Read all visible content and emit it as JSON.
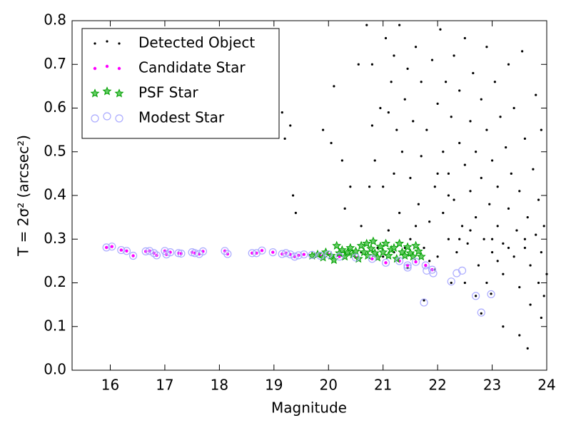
{
  "chart_data": {
    "type": "scatter",
    "xlabel": "Magnitude",
    "ylabel": "T = 2σ² (arcsec²)",
    "xlim": [
      15.3,
      24
    ],
    "ylim": [
      0,
      0.8
    ],
    "xticks": [
      16,
      17,
      18,
      19,
      20,
      21,
      22,
      23,
      24
    ],
    "yticks": [
      {
        "value": 0,
        "label": "0.0"
      },
      0.1,
      0.2,
      0.3,
      0.4,
      0.5,
      0.6,
      0.7,
      0.8
    ],
    "legend": "upper left",
    "series": [
      {
        "name": "Detected Object",
        "color": "#000000",
        "marker": "dot",
        "x": [
          19.15,
          19.2,
          19.3,
          19.35,
          19.4,
          19.9,
          20.05,
          20.1,
          20.25,
          20.3,
          20.4,
          20.55,
          20.6,
          20.7,
          20.75,
          20.8,
          20.8,
          20.85,
          20.95,
          21.0,
          21.05,
          21.1,
          21.1,
          21.15,
          21.2,
          21.2,
          21.25,
          21.3,
          21.3,
          21.35,
          21.4,
          21.45,
          21.5,
          21.5,
          21.55,
          21.6,
          21.65,
          21.7,
          21.7,
          21.75,
          21.8,
          21.85,
          21.9,
          21.95,
          22.0,
          22.0,
          22.05,
          22.1,
          22.1,
          22.15,
          22.2,
          22.2,
          22.25,
          22.3,
          22.3,
          22.35,
          22.4,
          22.4,
          22.45,
          22.5,
          22.5,
          22.55,
          22.6,
          22.6,
          22.65,
          22.7,
          22.7,
          22.75,
          22.8,
          22.8,
          22.85,
          22.9,
          22.9,
          22.95,
          23.0,
          23.0,
          23.05,
          23.1,
          23.1,
          23.15,
          23.2,
          23.2,
          23.25,
          23.3,
          23.3,
          23.35,
          23.4,
          23.4,
          23.45,
          23.5,
          23.5,
          23.55,
          23.6,
          23.6,
          23.65,
          23.7,
          23.7,
          23.75,
          23.8,
          23.8,
          23.85,
          23.85,
          23.9,
          23.9,
          23.95,
          23.95,
          23.5,
          23.65,
          23.2,
          23.9,
          24.0,
          22.5,
          22.9,
          21.85,
          21.95,
          21.75,
          22.8,
          22.98,
          22.7,
          22.25,
          21.45,
          21.0,
          20.6,
          20.2,
          22.2,
          22.6,
          23.0,
          23.3,
          23.6,
          23.1,
          22.4,
          21.6,
          22.0,
          21.4,
          21.2,
          20.9
        ],
        "values": [
          0.59,
          0.53,
          0.56,
          0.4,
          0.36,
          0.55,
          0.52,
          0.65,
          0.48,
          0.37,
          0.42,
          0.7,
          0.33,
          0.79,
          0.42,
          0.56,
          0.7,
          0.48,
          0.6,
          0.42,
          0.76,
          0.32,
          0.59,
          0.66,
          0.45,
          0.72,
          0.55,
          0.36,
          0.79,
          0.5,
          0.62,
          0.69,
          0.3,
          0.44,
          0.57,
          0.74,
          0.38,
          0.66,
          0.49,
          0.28,
          0.55,
          0.34,
          0.71,
          0.42,
          0.61,
          0.26,
          0.78,
          0.5,
          0.36,
          0.66,
          0.3,
          0.45,
          0.58,
          0.72,
          0.39,
          0.27,
          0.52,
          0.64,
          0.33,
          0.47,
          0.76,
          0.29,
          0.57,
          0.41,
          0.68,
          0.35,
          0.5,
          0.24,
          0.62,
          0.44,
          0.3,
          0.74,
          0.55,
          0.38,
          0.27,
          0.48,
          0.66,
          0.33,
          0.42,
          0.58,
          0.22,
          0.29,
          0.51,
          0.7,
          0.37,
          0.45,
          0.26,
          0.6,
          0.32,
          0.19,
          0.41,
          0.73,
          0.28,
          0.53,
          0.35,
          0.15,
          0.24,
          0.46,
          0.31,
          0.63,
          0.2,
          0.39,
          0.27,
          0.55,
          0.17,
          0.33,
          0.08,
          0.05,
          0.1,
          0.12,
          0.22,
          0.2,
          0.2,
          0.25,
          0.23,
          0.16,
          0.13,
          0.175,
          0.17,
          0.2,
          0.235,
          0.26,
          0.27,
          0.27,
          0.4,
          0.32,
          0.3,
          0.28,
          0.3,
          0.25,
          0.3,
          0.33,
          0.45,
          0.28,
          0.27,
          0.28
        ]
      },
      {
        "name": "Candidate Star",
        "color": "#ff00ff",
        "marker": "circle",
        "x": [
          15.93,
          16.03,
          16.2,
          16.3,
          16.42,
          16.65,
          16.72,
          16.8,
          16.85,
          17.0,
          17.03,
          17.1,
          17.25,
          17.3,
          17.5,
          17.55,
          17.63,
          17.7,
          18.1,
          18.15,
          18.6,
          18.68,
          18.78,
          18.98,
          19.15,
          19.22,
          19.3,
          19.38,
          19.45,
          19.55,
          19.7,
          19.85,
          20.0,
          20.2,
          20.5,
          20.8,
          21.05,
          21.3,
          21.45,
          21.6,
          21.78,
          21.9
        ],
        "values": [
          0.281,
          0.283,
          0.275,
          0.273,
          0.262,
          0.272,
          0.273,
          0.268,
          0.263,
          0.273,
          0.265,
          0.27,
          0.268,
          0.267,
          0.27,
          0.268,
          0.266,
          0.272,
          0.273,
          0.266,
          0.268,
          0.268,
          0.274,
          0.27,
          0.266,
          0.268,
          0.265,
          0.26,
          0.263,
          0.265,
          0.264,
          0.262,
          0.265,
          0.26,
          0.258,
          0.255,
          0.246,
          0.25,
          0.24,
          0.248,
          0.24,
          0.23
        ]
      },
      {
        "name": "PSF Star",
        "color": "#00a000",
        "marker": "star",
        "x": [
          19.7,
          19.8,
          19.9,
          19.95,
          20.05,
          20.1,
          20.15,
          20.2,
          20.25,
          20.3,
          20.35,
          20.4,
          20.45,
          20.5,
          20.55,
          20.6,
          20.65,
          20.7,
          20.72,
          20.78,
          20.82,
          20.85,
          20.9,
          20.95,
          21.0,
          21.05,
          21.1,
          21.15,
          21.2,
          21.25,
          21.3,
          21.35,
          21.4,
          21.45,
          21.5,
          21.55,
          21.6,
          21.65,
          21.7
        ],
        "values": [
          0.262,
          0.265,
          0.258,
          0.27,
          0.262,
          0.252,
          0.285,
          0.268,
          0.275,
          0.26,
          0.27,
          0.28,
          0.265,
          0.272,
          0.255,
          0.285,
          0.27,
          0.29,
          0.262,
          0.278,
          0.295,
          0.268,
          0.258,
          0.283,
          0.27,
          0.29,
          0.262,
          0.276,
          0.28,
          0.255,
          0.29,
          0.27,
          0.262,
          0.282,
          0.268,
          0.26,
          0.285,
          0.272,
          0.26
        ]
      },
      {
        "name": "Modest Star",
        "color": "#aaaaff",
        "marker": "open-circle",
        "x": [
          15.93,
          16.03,
          16.2,
          16.3,
          16.42,
          16.65,
          16.72,
          16.8,
          16.85,
          17.0,
          17.03,
          17.1,
          17.25,
          17.3,
          17.5,
          17.55,
          17.63,
          17.7,
          18.1,
          18.15,
          18.6,
          18.68,
          18.78,
          18.98,
          19.15,
          19.22,
          19.3,
          19.38,
          19.45,
          19.55,
          19.7,
          19.85,
          20.0,
          20.2,
          20.5,
          20.8,
          21.05,
          21.3,
          21.45,
          21.6,
          21.78,
          21.9,
          21.75,
          21.8,
          21.92,
          22.25,
          22.35,
          22.45,
          22.7,
          22.8,
          22.98,
          21.45
        ],
        "values": [
          0.281,
          0.283,
          0.275,
          0.273,
          0.262,
          0.272,
          0.273,
          0.268,
          0.263,
          0.273,
          0.265,
          0.27,
          0.268,
          0.267,
          0.27,
          0.268,
          0.266,
          0.272,
          0.273,
          0.266,
          0.268,
          0.268,
          0.274,
          0.27,
          0.266,
          0.268,
          0.265,
          0.26,
          0.263,
          0.265,
          0.264,
          0.262,
          0.265,
          0.26,
          0.258,
          0.255,
          0.246,
          0.25,
          0.24,
          0.248,
          0.24,
          0.23,
          0.155,
          0.228,
          0.222,
          0.203,
          0.222,
          0.228,
          0.17,
          0.132,
          0.174,
          0.235
        ]
      }
    ]
  }
}
